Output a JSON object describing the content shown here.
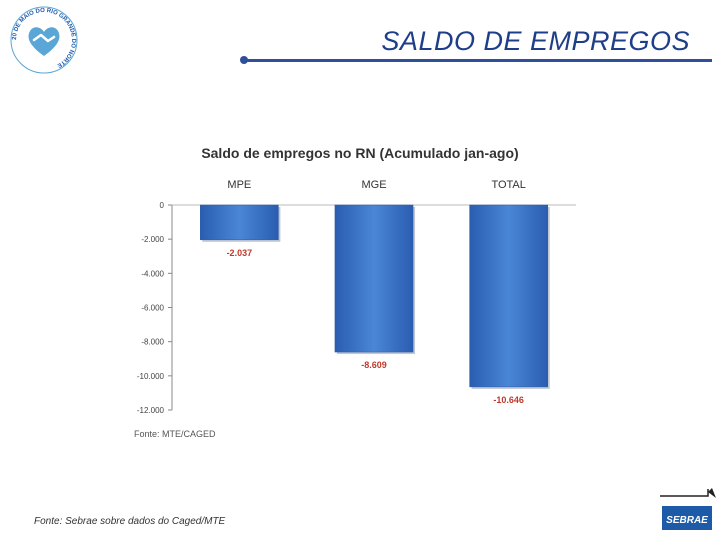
{
  "header": {
    "title": "SALDO DE EMPREGOS",
    "logo_ring_text": "20 DE MAIO DO RIO GRANDE DO NORTE"
  },
  "footer": {
    "note": "Fonte: Sebrae sobre dados do Caged/MTE",
    "brand_text": "SEBRAE"
  },
  "colors": {
    "title": "#1f3e8a",
    "bar": "#3b73c8",
    "brand": "#1d5aa8"
  },
  "chart_data": {
    "type": "bar",
    "title": "Saldo de empregos no RN (Acumulado jan-ago)",
    "categories": [
      "MPE",
      "MGE",
      "TOTAL"
    ],
    "values": [
      -2037,
      -8609,
      -10646
    ],
    "data_labels": [
      "-2.037",
      "-8.609",
      "-10.646"
    ],
    "y_ticks": [
      "0",
      "-2.000",
      "-4.000",
      "-6.000",
      "-8.000",
      "-10.000",
      "-12.000"
    ],
    "ylim": [
      -12000,
      0
    ],
    "grid": false,
    "source": "Fonte: MTE/CAGED"
  }
}
